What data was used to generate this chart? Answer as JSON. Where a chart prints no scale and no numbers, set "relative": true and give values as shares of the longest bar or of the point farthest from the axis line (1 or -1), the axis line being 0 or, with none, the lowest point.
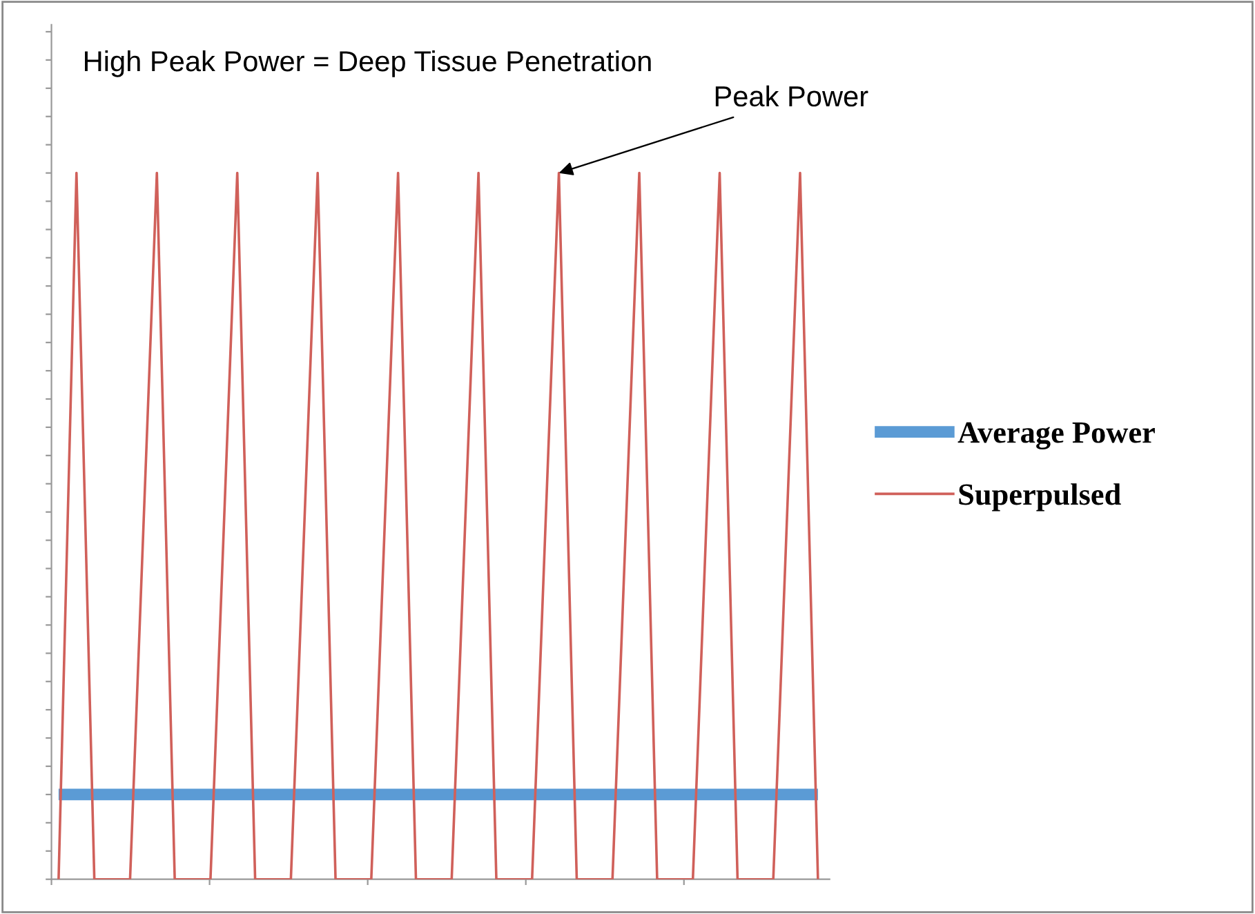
{
  "chart_data": {
    "type": "line",
    "relative": true,
    "title": "High Peak Power = Deep Tissue Penetration",
    "annotations": [
      "Peak Power"
    ],
    "tick_labels": false,
    "grid": false,
    "legend": "right",
    "categories": [
      null,
      null,
      null,
      null,
      null,
      null,
      null,
      null,
      null,
      null,
      null,
      null,
      null,
      null,
      null,
      null,
      null,
      null,
      null,
      null,
      null,
      null,
      null,
      null,
      null,
      null,
      null,
      null,
      null,
      null,
      null,
      null,
      null,
      null,
      null,
      null,
      null,
      null,
      null,
      null,
      null,
      null,
      null,
      null,
      null,
      null,
      null,
      null,
      null,
      null,
      null,
      null,
      null,
      null,
      null,
      null,
      null,
      null,
      null,
      null,
      null,
      null,
      null,
      null,
      null,
      null,
      null,
      null,
      null,
      null,
      null,
      null,
      null,
      null,
      null,
      null,
      null,
      null,
      null,
      null,
      null,
      null,
      null,
      null,
      null,
      null
    ],
    "series": [
      {
        "name": "Average Power",
        "color": "#5b9bd5",
        "values": [
          0.12,
          0.12,
          0.12,
          0.12,
          0.12,
          0.12,
          0.12,
          0.12,
          0.12,
          0.12,
          0.12,
          0.12,
          0.12,
          0.12,
          0.12,
          0.12,
          0.12,
          0.12,
          0.12,
          0.12,
          0.12,
          0.12,
          0.12,
          0.12,
          0.12,
          0.12,
          0.12,
          0.12,
          0.12,
          0.12,
          0.12,
          0.12,
          0.12,
          0.12,
          0.12,
          0.12,
          0.12,
          0.12,
          0.12,
          0.12,
          0.12,
          0.12,
          0.12,
          0.12,
          0.12,
          0.12,
          0.12,
          0.12,
          0.12,
          0.12,
          0.12,
          0.12,
          0.12,
          0.12,
          0.12,
          0.12,
          0.12,
          0.12,
          0.12,
          0.12,
          0.12,
          0.12,
          0.12,
          0.12,
          0.12,
          0.12,
          0.12,
          0.12,
          0.12,
          0.12,
          0.12,
          0.12,
          0.12,
          0.12,
          0.12,
          0.12,
          0.12,
          0.12,
          0.12,
          0.12,
          0.12,
          0.12,
          0.12,
          0.12,
          0.12,
          0.12
        ]
      },
      {
        "name": "Superpulsed",
        "color": "#d0605a",
        "values": [
          0,
          null,
          1,
          null,
          0,
          0,
          0,
          0,
          0,
          null,
          null,
          1,
          null,
          0,
          0,
          0,
          0,
          0,
          null,
          null,
          1,
          null,
          0,
          0,
          0,
          0,
          0,
          null,
          null,
          1,
          null,
          0,
          0,
          0,
          0,
          0,
          null,
          null,
          1,
          null,
          0,
          0,
          0,
          0,
          0,
          null,
          null,
          1,
          null,
          0,
          0,
          0,
          0,
          0,
          null,
          null,
          1,
          null,
          0,
          0,
          0,
          0,
          0,
          null,
          null,
          1,
          null,
          0,
          0,
          0,
          0,
          0,
          null,
          null,
          1,
          null,
          0,
          0,
          0,
          0,
          0,
          null,
          null,
          1,
          null,
          0
        ]
      }
    ]
  }
}
